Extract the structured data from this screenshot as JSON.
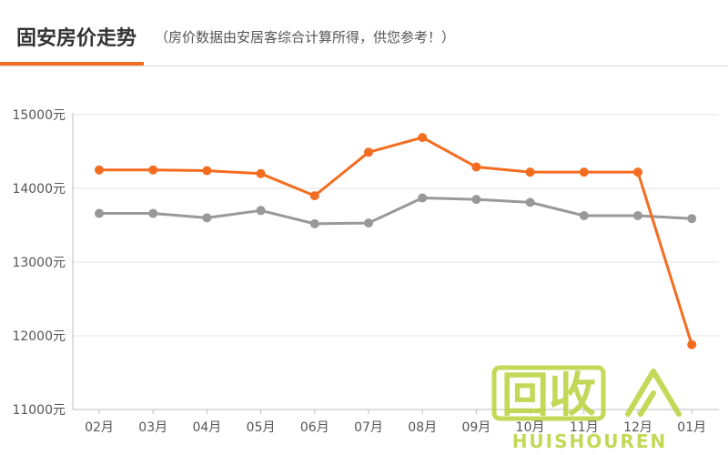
{
  "header": {
    "title": "固安房价走势",
    "note": "（房价数据由安居客综合计算所得，供您参考！）"
  },
  "colors": {
    "accent": "#f36d21",
    "series_orange": "#f36d21",
    "series_gray": "#999999",
    "watermark": "#b8d23a"
  },
  "watermark": {
    "main": "回收",
    "sub": "HUISHOUREN"
  },
  "chart_data": {
    "type": "line",
    "title": "",
    "xlabel": "",
    "ylabel": "",
    "categories": [
      "02月",
      "03月",
      "04月",
      "05月",
      "06月",
      "07月",
      "08月",
      "09月",
      "10月",
      "11月",
      "12月",
      "01月"
    ],
    "y_ticks": [
      "11000元",
      "12000元",
      "13000元",
      "14000元",
      "15000元"
    ],
    "y_tick_values": [
      11000,
      12000,
      13000,
      14000,
      15000
    ],
    "ylim": [
      11000,
      15000
    ],
    "grid": true,
    "legend": "none",
    "series": [
      {
        "color": "#f36d21",
        "values": [
          14250,
          14250,
          14240,
          14200,
          13900,
          14490,
          14690,
          14290,
          14220,
          14220,
          14220,
          11880
        ]
      },
      {
        "color": "#999999",
        "values": [
          13660,
          13660,
          13600,
          13700,
          13520,
          13530,
          13870,
          13850,
          13810,
          13630,
          13630,
          13590
        ]
      }
    ]
  }
}
